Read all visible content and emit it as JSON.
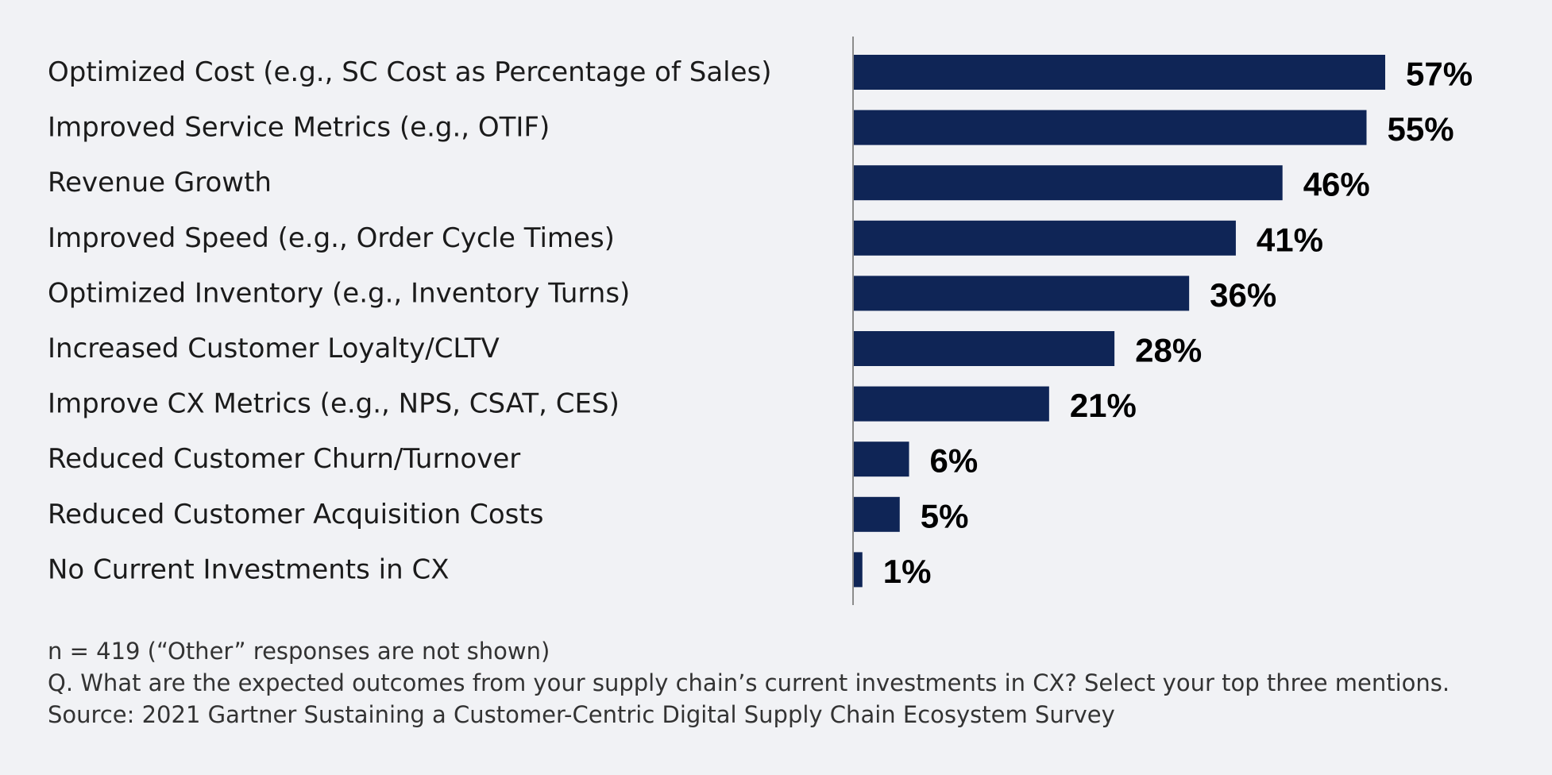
{
  "chart_data": {
    "type": "bar",
    "orientation": "horizontal",
    "title": "",
    "xlabel": "",
    "ylabel": "",
    "xlim": [
      0,
      57
    ],
    "grid": false,
    "value_suffix": "%",
    "bar_color": "#0f2556",
    "axis_color": "#8c8c8c",
    "categories": [
      "Optimized Cost (e.g., SC Cost as Percentage of Sales)",
      "Improved Service Metrics (e.g., OTIF)",
      "Revenue Growth",
      "Improved Speed (e.g., Order Cycle Times)",
      "Optimized Inventory (e.g., Inventory Turns)",
      "Increased Customer Loyalty/CLTV",
      "Improve CX Metrics (e.g., NPS, CSAT, CES)",
      "Reduced Customer Churn/Turnover",
      "Reduced Customer Acquisition Costs",
      "No Current Investments in CX"
    ],
    "values": [
      57,
      55,
      46,
      41,
      36,
      28,
      21,
      6,
      5,
      1
    ],
    "value_labels": [
      "57%",
      "55%",
      "46%",
      "41%",
      "36%",
      "28%",
      "21%",
      "6%",
      "5%",
      "1%"
    ]
  },
  "footnotes": {
    "sample": "n = 419 (“Other” responses are not shown)",
    "question": "Q. What are the expected outcomes from your supply chain’s current investments in CX? Select your top three mentions.",
    "source": "Source: 2021 Gartner Sustaining a Customer-Centric Digital Supply Chain Ecosystem Survey"
  }
}
